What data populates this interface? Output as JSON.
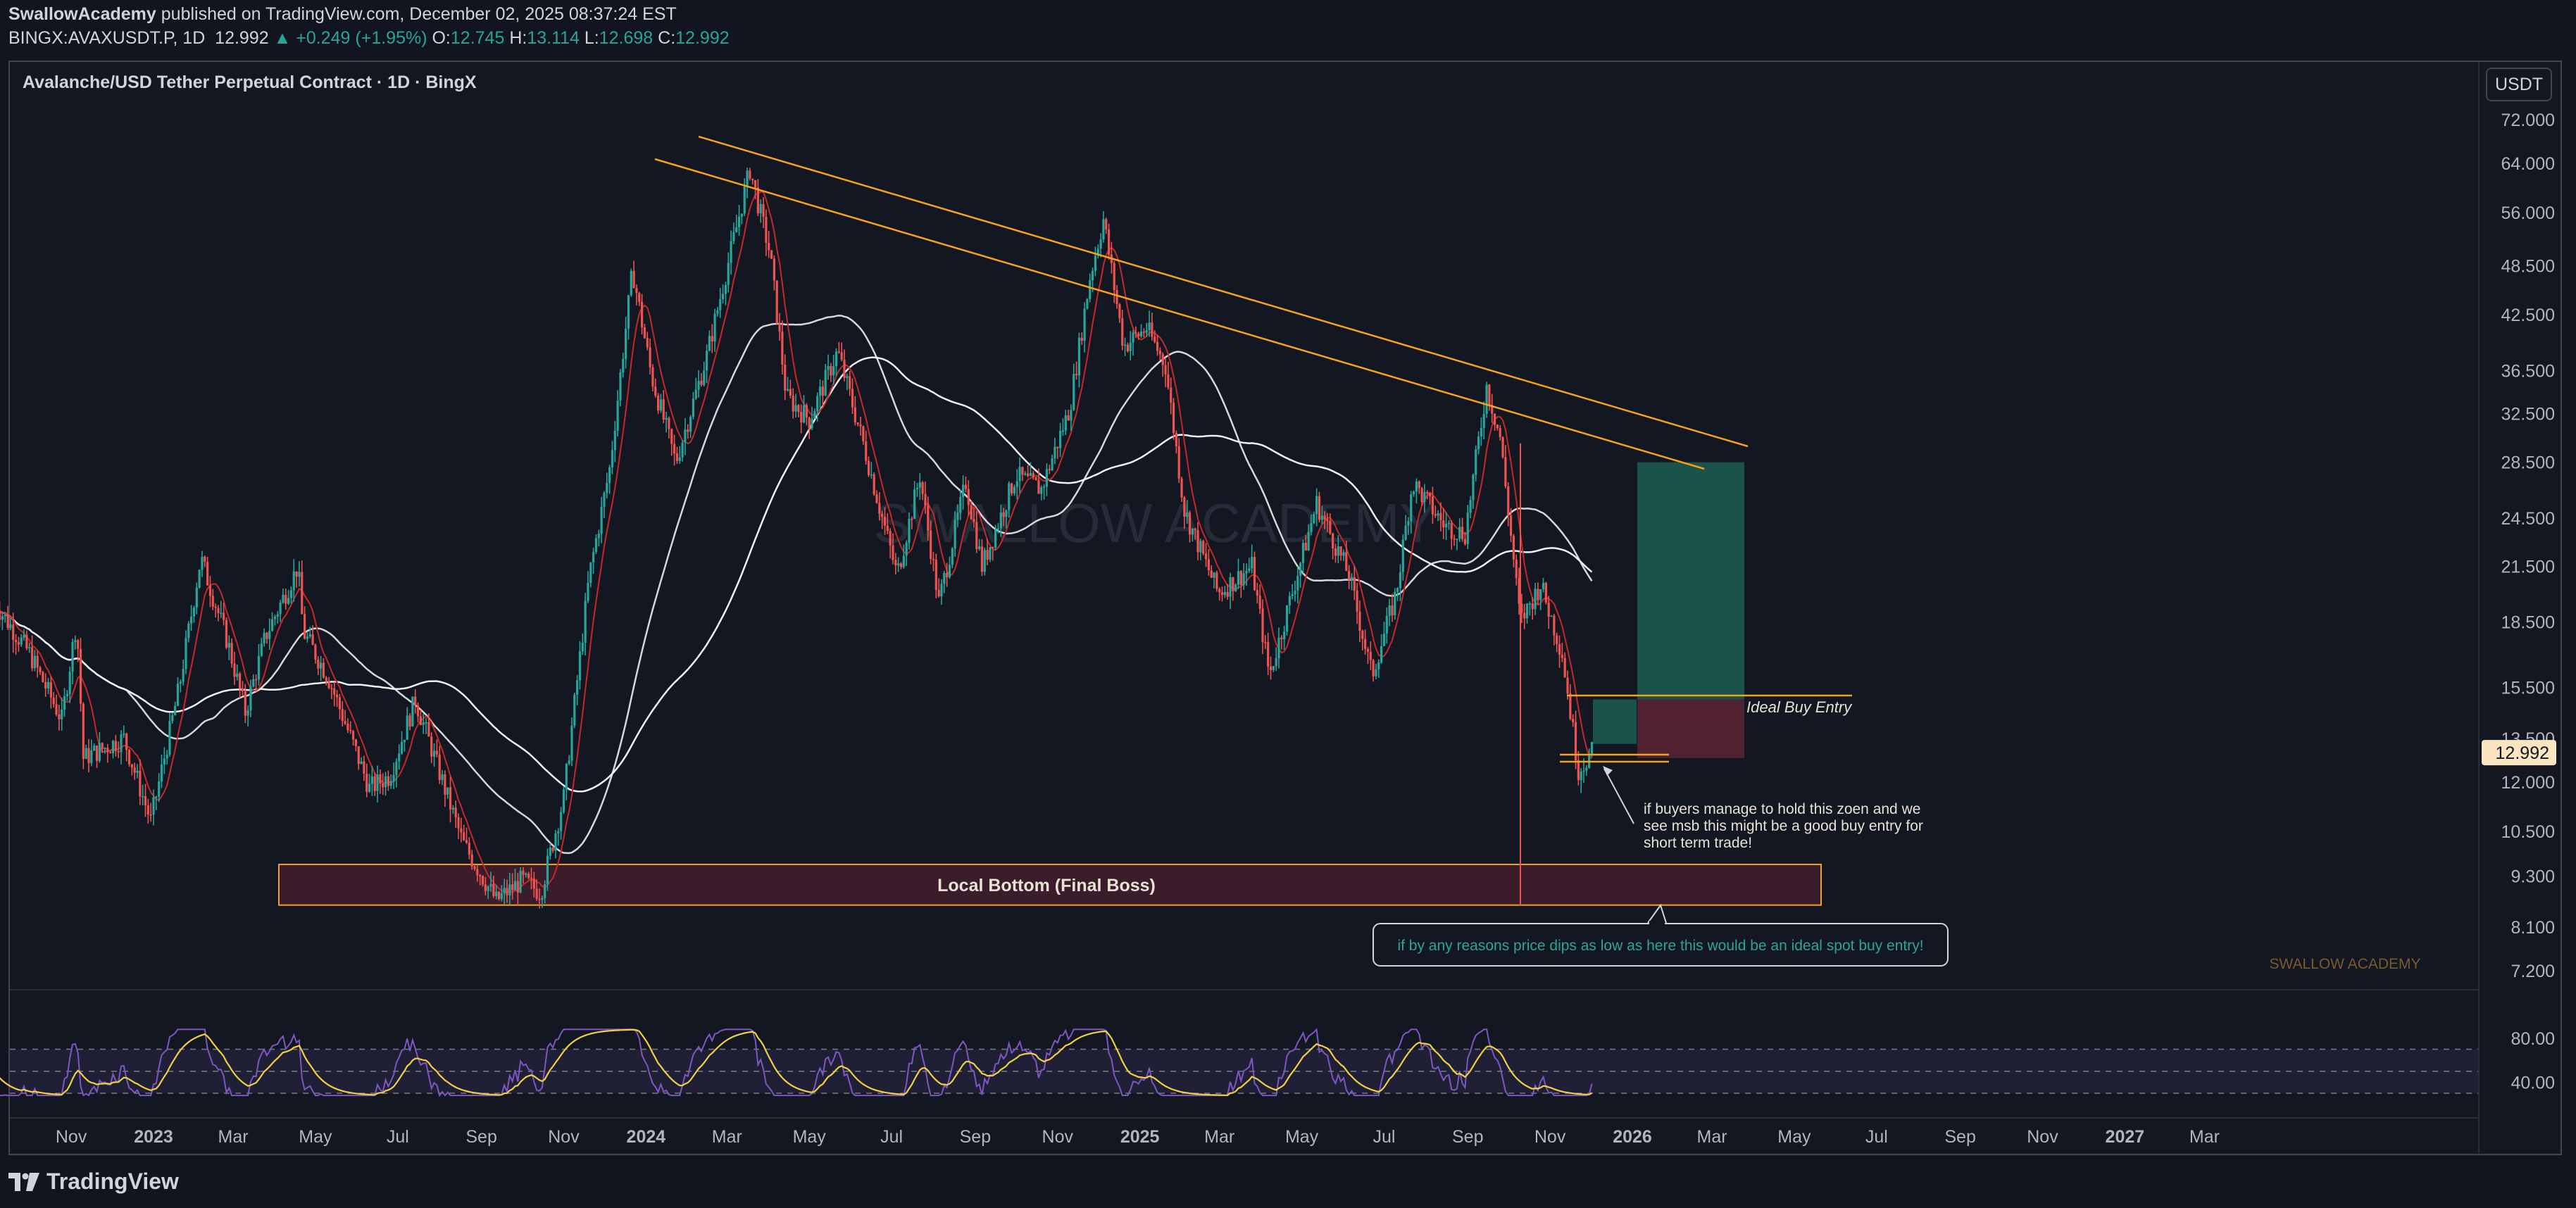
{
  "header": {
    "author": "SwallowAcademy",
    "published": "published on TradingView.com, December 02, 2025 08:37:24 EST",
    "symbol": "BINGX:AVAXUSDT.P, 1D",
    "last": "12.992",
    "change": "▲ +0.249 (+1.95%)",
    "o_label": "O:",
    "o_value": "12.745",
    "h_label": "H:",
    "h_value": "13.114",
    "l_label": "L:",
    "l_value": "12.698",
    "c_label": "C:",
    "c_value": "12.992"
  },
  "chart": {
    "title": "Avalanche/USD Tether Perpetual Contract · 1D · BingX",
    "currency_button": "USDT",
    "watermark": "SWALLOW ACADEMY",
    "corner_watermark": "SWALLOW ACADEMY",
    "current_price_label": "12.992",
    "annotations": {
      "local_bottom": "Local Bottom (Final Boss)",
      "ideal_buy_entry": "Ideal Buy Entry",
      "hold_zone_note": [
        "if buyers manage to hold this zoen and we",
        "see msb this might be a good buy entry for",
        "short term trade!"
      ],
      "callout": "if by any reasons price dips as low as here this would be an ideal spot buy entry!"
    }
  },
  "footer": {
    "brand": "TradingView"
  },
  "colors": {
    "background": "#131722",
    "candle_up": "#26a69a",
    "candle_down": "#ef5350",
    "trendline": "#f7a21b",
    "rsi": "#7e57c2",
    "rsi_signal": "#f1d046",
    "long_target": "#1b5e50",
    "long_stop": "#5c2333"
  },
  "chart_data": {
    "type": "candlestick",
    "symbol": "BINGX:AVAXUSDT.P",
    "interval": "1D",
    "scale": "log",
    "price_axis_ticks": [
      72.0,
      64.0,
      56.0,
      48.5,
      42.5,
      36.5,
      32.5,
      28.5,
      24.5,
      21.5,
      18.5,
      15.5,
      13.5,
      12.0,
      10.5,
      9.3,
      8.1,
      7.2
    ],
    "price_axis_labels": [
      "72.000",
      "64.000",
      "56.000",
      "48.500",
      "42.500",
      "36.500",
      "32.500",
      "28.500",
      "24.500",
      "21.500",
      "18.500",
      "15.500",
      "13.500",
      "12.000",
      "10.500",
      "9.300",
      "8.100",
      "7.200"
    ],
    "time_axis_labels": [
      "Nov",
      "2023",
      "Mar",
      "May",
      "Jul",
      "Sep",
      "Nov",
      "2024",
      "Mar",
      "May",
      "Jul",
      "Sep",
      "Nov",
      "2025",
      "Mar",
      "May",
      "Jul",
      "Sep",
      "Nov",
      "2026",
      "Mar",
      "May",
      "Jul",
      "Sep",
      "Nov",
      "2027",
      "Mar"
    ],
    "time_axis_bold": [
      "2023",
      "2024",
      "2025",
      "2026",
      "2027"
    ],
    "time_axis_dates": [
      "2022-11-01",
      "2023-01-01",
      "2023-03-01",
      "2023-05-01",
      "2023-07-01",
      "2023-09-01",
      "2023-11-01",
      "2024-01-01",
      "2024-03-01",
      "2024-05-01",
      "2024-07-01",
      "2024-09-01",
      "2024-11-01",
      "2025-01-01",
      "2025-03-01",
      "2025-05-01",
      "2025-07-01",
      "2025-09-01",
      "2025-11-01",
      "2026-01-01",
      "2026-03-01",
      "2026-05-01",
      "2026-07-01",
      "2026-09-01",
      "2026-11-01",
      "2027-01-01",
      "2027-03-01"
    ],
    "price_path": [
      {
        "date": "2022-09-05",
        "price": 19.5
      },
      {
        "date": "2022-10-01",
        "price": 17.0
      },
      {
        "date": "2022-10-25",
        "price": 14.2
      },
      {
        "date": "2022-11-05",
        "price": 18.6
      },
      {
        "date": "2022-11-10",
        "price": 12.8
      },
      {
        "date": "2022-12-10",
        "price": 13.5
      },
      {
        "date": "2022-12-30",
        "price": 10.8
      },
      {
        "date": "2023-01-20",
        "price": 15.5
      },
      {
        "date": "2023-02-05",
        "price": 22.0
      },
      {
        "date": "2023-02-25",
        "price": 17.5
      },
      {
        "date": "2023-03-10",
        "price": 14.5
      },
      {
        "date": "2023-03-25",
        "price": 17.8
      },
      {
        "date": "2023-04-18",
        "price": 21.5
      },
      {
        "date": "2023-04-22",
        "price": 18.0
      },
      {
        "date": "2023-05-10",
        "price": 16.0
      },
      {
        "date": "2023-06-10",
        "price": 11.8
      },
      {
        "date": "2023-06-25",
        "price": 12.2
      },
      {
        "date": "2023-07-14",
        "price": 15.0
      },
      {
        "date": "2023-08-18",
        "price": 10.2
      },
      {
        "date": "2023-09-12",
        "price": 8.7
      },
      {
        "date": "2023-10-01",
        "price": 9.2
      },
      {
        "date": "2023-10-15",
        "price": 8.9
      },
      {
        "date": "2023-11-01",
        "price": 11.5
      },
      {
        "date": "2023-11-20",
        "price": 21.0
      },
      {
        "date": "2023-12-05",
        "price": 28.0
      },
      {
        "date": "2023-12-22",
        "price": 48.0
      },
      {
        "date": "2024-01-05",
        "price": 36.0
      },
      {
        "date": "2024-01-23",
        "price": 28.5
      },
      {
        "date": "2024-02-15",
        "price": 38.0
      },
      {
        "date": "2024-03-18",
        "price": 63.0
      },
      {
        "date": "2024-04-02",
        "price": 50.0
      },
      {
        "date": "2024-04-14",
        "price": 34.0
      },
      {
        "date": "2024-05-01",
        "price": 32.0
      },
      {
        "date": "2024-05-22",
        "price": 38.5
      },
      {
        "date": "2024-06-10",
        "price": 30.0
      },
      {
        "date": "2024-07-05",
        "price": 21.0
      },
      {
        "date": "2024-07-22",
        "price": 27.5
      },
      {
        "date": "2024-08-05",
        "price": 19.5
      },
      {
        "date": "2024-08-25",
        "price": 27.0
      },
      {
        "date": "2024-09-06",
        "price": 21.5
      },
      {
        "date": "2024-10-01",
        "price": 27.5
      },
      {
        "date": "2024-10-20",
        "price": 26.5
      },
      {
        "date": "2024-11-10",
        "price": 33.0
      },
      {
        "date": "2024-11-25",
        "price": 47.0
      },
      {
        "date": "2024-12-05",
        "price": 55.0
      },
      {
        "date": "2024-12-20",
        "price": 39.0
      },
      {
        "date": "2025-01-06",
        "price": 41.0
      },
      {
        "date": "2025-01-20",
        "price": 37.0
      },
      {
        "date": "2025-02-03",
        "price": 25.0
      },
      {
        "date": "2025-02-28",
        "price": 20.0
      },
      {
        "date": "2025-03-25",
        "price": 21.5
      },
      {
        "date": "2025-04-07",
        "price": 16.0
      },
      {
        "date": "2025-05-12",
        "price": 25.5
      },
      {
        "date": "2025-06-05",
        "price": 21.0
      },
      {
        "date": "2025-06-22",
        "price": 16.0
      },
      {
        "date": "2025-07-10",
        "price": 20.0
      },
      {
        "date": "2025-07-22",
        "price": 27.0
      },
      {
        "date": "2025-08-15",
        "price": 24.0
      },
      {
        "date": "2025-08-30",
        "price": 23.5
      },
      {
        "date": "2025-09-15",
        "price": 35.0
      },
      {
        "date": "2025-09-25",
        "price": 30.5
      },
      {
        "date": "2025-10-10",
        "price": 18.5
      },
      {
        "date": "2025-10-25",
        "price": 20.5
      },
      {
        "date": "2025-11-10",
        "price": 17.0
      },
      {
        "date": "2025-11-22",
        "price": 12.4
      },
      {
        "date": "2025-12-02",
        "price": 12.99
      }
    ],
    "rsi_axis_labels": [
      "80.00",
      "40.00"
    ],
    "zones": [
      {
        "name": "Local Bottom (Final Boss)",
        "from": "2023-05-01",
        "to": "2026-05-01",
        "low": 8.6,
        "high": 9.6
      },
      {
        "name": "long target",
        "from": "2025-12-20",
        "to": "2026-02-28",
        "low": 15.0,
        "high": 28.5
      },
      {
        "name": "long stop",
        "from": "2025-12-02",
        "to": "2026-02-28",
        "low": 12.8,
        "high": 15.0
      }
    ],
    "trendlines": [
      {
        "from": {
          "date": "2023-11-01",
          "price": 63.5
        },
        "to": {
          "date": "2026-04-05",
          "price": 29.5
        }
      },
      {
        "from": {
          "date": "2023-12-05",
          "price": 68.0
        },
        "to": {
          "date": "2026-03-05",
          "price": 28.0
        }
      }
    ]
  }
}
